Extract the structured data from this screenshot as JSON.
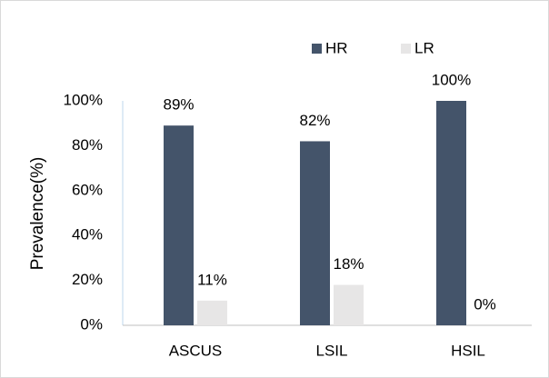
{
  "chart_data": {
    "type": "bar",
    "y_label": "Prevalence(%)",
    "categories": [
      "ASCUS",
      "LSIL",
      "HSIL"
    ],
    "series": [
      {
        "name": "HR",
        "color": "#44546a",
        "values": [
          89,
          82,
          100
        ],
        "value_labels": [
          "89%",
          "82%",
          "100%"
        ]
      },
      {
        "name": "LR",
        "color": "#e7e6e6",
        "values": [
          11,
          18,
          0
        ],
        "value_labels": [
          "11%",
          "18%",
          "0%"
        ]
      }
    ],
    "ylim": [
      0,
      100
    ],
    "yticks": [
      {
        "value": 0,
        "label": "0%"
      },
      {
        "value": 20,
        "label": "20%"
      },
      {
        "value": 40,
        "label": "40%"
      },
      {
        "value": 60,
        "label": "60%"
      },
      {
        "value": 80,
        "label": "80%"
      },
      {
        "value": 100,
        "label": "100%"
      }
    ],
    "grid": false,
    "legend": "top"
  }
}
